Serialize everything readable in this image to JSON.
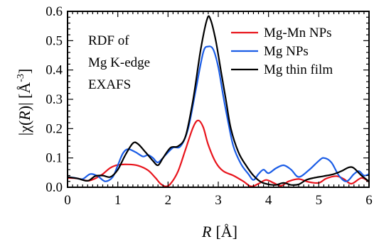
{
  "chart_data": {
    "type": "line",
    "title": "",
    "annotation": [
      "RDF of",
      "Mg K-edge",
      "EXAFS"
    ],
    "xlabel": {
      "prefix": "R",
      "suffix": "[Å]"
    },
    "ylabel": {
      "prefix": "|χ(",
      "var": "R",
      "mid": ")| [Å",
      "sup": "-3",
      "suffix": "]"
    },
    "xlim": [
      0,
      6
    ],
    "ylim": [
      0,
      0.6
    ],
    "xticks": [
      "0",
      "1",
      "2",
      "3",
      "4",
      "5",
      "6"
    ],
    "yticks": [
      "0.0",
      "0.1",
      "0.2",
      "0.3",
      "0.4",
      "0.5",
      "0.6"
    ],
    "grid": false,
    "legend_position": "top-right",
    "series": [
      {
        "name": "Mg-Mn NPs",
        "color": "#e8141c",
        "points": [
          [
            0,
            0.032
          ],
          [
            0.2,
            0.03
          ],
          [
            0.4,
            0.022
          ],
          [
            0.55,
            0.03
          ],
          [
            0.7,
            0.045
          ],
          [
            0.85,
            0.066
          ],
          [
            1.0,
            0.076
          ],
          [
            1.2,
            0.078
          ],
          [
            1.4,
            0.074
          ],
          [
            1.6,
            0.058
          ],
          [
            1.75,
            0.032
          ],
          [
            1.85,
            0.012
          ],
          [
            1.95,
            0.003
          ],
          [
            2.05,
            0.012
          ],
          [
            2.2,
            0.055
          ],
          [
            2.35,
            0.13
          ],
          [
            2.5,
            0.205
          ],
          [
            2.6,
            0.228
          ],
          [
            2.7,
            0.205
          ],
          [
            2.8,
            0.145
          ],
          [
            2.95,
            0.085
          ],
          [
            3.1,
            0.055
          ],
          [
            3.3,
            0.04
          ],
          [
            3.5,
            0.02
          ],
          [
            3.65,
            0.003
          ],
          [
            3.8,
            0.012
          ],
          [
            3.95,
            0.025
          ],
          [
            4.1,
            0.015
          ],
          [
            4.25,
            0.005
          ],
          [
            4.4,
            0.02
          ],
          [
            4.6,
            0.028
          ],
          [
            4.8,
            0.018
          ],
          [
            5.0,
            0.015
          ],
          [
            5.15,
            0.03
          ],
          [
            5.35,
            0.038
          ],
          [
            5.5,
            0.028
          ],
          [
            5.65,
            0.012
          ],
          [
            5.85,
            0.032
          ],
          [
            6.0,
            0.018
          ]
        ]
      },
      {
        "name": "Mg NPs",
        "color": "#1a5ce6",
        "points": [
          [
            0,
            0.035
          ],
          [
            0.15,
            0.032
          ],
          [
            0.3,
            0.028
          ],
          [
            0.45,
            0.045
          ],
          [
            0.6,
            0.038
          ],
          [
            0.75,
            0.02
          ],
          [
            0.9,
            0.035
          ],
          [
            1.0,
            0.075
          ],
          [
            1.1,
            0.115
          ],
          [
            1.2,
            0.13
          ],
          [
            1.35,
            0.12
          ],
          [
            1.5,
            0.105
          ],
          [
            1.6,
            0.11
          ],
          [
            1.7,
            0.1
          ],
          [
            1.8,
            0.085
          ],
          [
            1.95,
            0.11
          ],
          [
            2.1,
            0.135
          ],
          [
            2.25,
            0.14
          ],
          [
            2.4,
            0.2
          ],
          [
            2.55,
            0.33
          ],
          [
            2.7,
            0.46
          ],
          [
            2.8,
            0.48
          ],
          [
            2.9,
            0.47
          ],
          [
            3.0,
            0.41
          ],
          [
            3.1,
            0.31
          ],
          [
            3.2,
            0.22
          ],
          [
            3.3,
            0.14
          ],
          [
            3.45,
            0.08
          ],
          [
            3.6,
            0.045
          ],
          [
            3.7,
            0.025
          ],
          [
            3.8,
            0.045
          ],
          [
            3.9,
            0.06
          ],
          [
            4.0,
            0.048
          ],
          [
            4.15,
            0.065
          ],
          [
            4.3,
            0.075
          ],
          [
            4.45,
            0.06
          ],
          [
            4.6,
            0.035
          ],
          [
            4.8,
            0.058
          ],
          [
            5.0,
            0.09
          ],
          [
            5.1,
            0.1
          ],
          [
            5.25,
            0.085
          ],
          [
            5.4,
            0.04
          ],
          [
            5.55,
            0.02
          ],
          [
            5.7,
            0.045
          ],
          [
            5.8,
            0.055
          ],
          [
            5.9,
            0.04
          ],
          [
            6.0,
            0.045
          ]
        ]
      },
      {
        "name": "Mg thin film",
        "color": "#000000",
        "points": [
          [
            0,
            0.035
          ],
          [
            0.2,
            0.03
          ],
          [
            0.4,
            0.022
          ],
          [
            0.55,
            0.038
          ],
          [
            0.7,
            0.04
          ],
          [
            0.85,
            0.035
          ],
          [
            1.0,
            0.06
          ],
          [
            1.15,
            0.11
          ],
          [
            1.3,
            0.15
          ],
          [
            1.4,
            0.148
          ],
          [
            1.55,
            0.12
          ],
          [
            1.7,
            0.09
          ],
          [
            1.8,
            0.075
          ],
          [
            1.9,
            0.1
          ],
          [
            2.05,
            0.135
          ],
          [
            2.2,
            0.14
          ],
          [
            2.35,
            0.175
          ],
          [
            2.5,
            0.3
          ],
          [
            2.65,
            0.47
          ],
          [
            2.78,
            0.575
          ],
          [
            2.85,
            0.57
          ],
          [
            2.95,
            0.5
          ],
          [
            3.05,
            0.4
          ],
          [
            3.15,
            0.3
          ],
          [
            3.25,
            0.2
          ],
          [
            3.4,
            0.12
          ],
          [
            3.55,
            0.075
          ],
          [
            3.7,
            0.04
          ],
          [
            3.85,
            0.018
          ],
          [
            4.0,
            0.01
          ],
          [
            4.15,
            0.008
          ],
          [
            4.3,
            0.015
          ],
          [
            4.45,
            0.008
          ],
          [
            4.6,
            0.01
          ],
          [
            4.75,
            0.025
          ],
          [
            4.9,
            0.032
          ],
          [
            5.1,
            0.038
          ],
          [
            5.3,
            0.045
          ],
          [
            5.45,
            0.055
          ],
          [
            5.6,
            0.068
          ],
          [
            5.7,
            0.065
          ],
          [
            5.85,
            0.04
          ],
          [
            6.0,
            0.02
          ]
        ]
      }
    ]
  }
}
